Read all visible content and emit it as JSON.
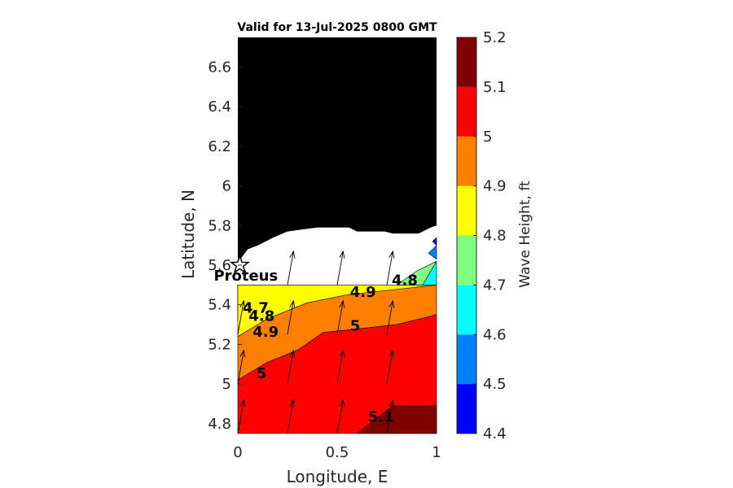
{
  "chart_data": {
    "type": "heatmap",
    "title": "Valid for 13-Jul-2025 0800 GMT",
    "xlabel": "Longitude, E",
    "ylabel": "Latitude, N",
    "xlim": [
      0,
      1
    ],
    "ylim": [
      4.75,
      6.75
    ],
    "x_ticks": [
      {
        "value": 0,
        "label": "0"
      },
      {
        "value": 0.5,
        "label": "0.5"
      },
      {
        "value": 1,
        "label": "1"
      }
    ],
    "y_ticks": [
      {
        "value": 4.8,
        "label": "4.8"
      },
      {
        "value": 5.0,
        "label": "5"
      },
      {
        "value": 5.2,
        "label": "5.2"
      },
      {
        "value": 5.4,
        "label": "5.4"
      },
      {
        "value": 5.6,
        "label": "5.6"
      },
      {
        "value": 5.8,
        "label": "5.8"
      },
      {
        "value": 6.0,
        "label": "6"
      },
      {
        "value": 6.2,
        "label": "6.2"
      },
      {
        "value": 6.4,
        "label": "6.4"
      },
      {
        "value": 6.6,
        "label": "6.6"
      }
    ],
    "colorbar": {
      "label": "Wave Height, ft",
      "levels": [
        4.4,
        4.5,
        4.6,
        4.7,
        4.8,
        4.9,
        5.0,
        5.1,
        5.2
      ],
      "level_labels": [
        "4.4",
        "4.5",
        "4.6",
        "4.7",
        "4.8",
        "4.9",
        "5",
        "5.1",
        "5.2"
      ],
      "colors": [
        "#0000ff",
        "#0080ff",
        "#00ffff",
        "#80ff80",
        "#ffff00",
        "#ff8000",
        "#ff0000",
        "#800000"
      ]
    },
    "bands": [
      {
        "level_index": 0,
        "points": [
          [
            0,
            5.5
          ],
          [
            0.1,
            5.5
          ],
          [
            0,
            5.4
          ]
        ]
      },
      {
        "level_index": 1,
        "points": [
          [
            0,
            5.5
          ],
          [
            0.17,
            5.5
          ],
          [
            0,
            5.36
          ]
        ]
      },
      {
        "level_index": 2,
        "points": [
          [
            0,
            5.5
          ],
          [
            0.24,
            5.5
          ],
          [
            0,
            5.33
          ]
        ]
      },
      {
        "level_index": 3,
        "points": [
          [
            0,
            5.5
          ],
          [
            0.4,
            5.5
          ],
          [
            0.1,
            5.4
          ],
          [
            0,
            5.32
          ]
        ]
      },
      {
        "level_index": 4,
        "points": [
          [
            0,
            5.5
          ],
          [
            1,
            5.5
          ],
          [
            0.55,
            5.45
          ],
          [
            0.35,
            5.41
          ],
          [
            0.15,
            5.33
          ],
          [
            0,
            5.24
          ]
        ]
      },
      {
        "level_index": 5,
        "points": [
          [
            0,
            5.24
          ],
          [
            0.15,
            5.33
          ],
          [
            0.35,
            5.41
          ],
          [
            0.55,
            5.45
          ],
          [
            1,
            5.5
          ],
          [
            1,
            5.35
          ],
          [
            0.8,
            5.3
          ],
          [
            0.62,
            5.28
          ],
          [
            0.43,
            5.26
          ],
          [
            0.3,
            5.17
          ],
          [
            0.15,
            5.11
          ],
          [
            0,
            5.02
          ]
        ]
      },
      {
        "level_index": 6,
        "points": [
          [
            0,
            5.02
          ],
          [
            0.15,
            5.11
          ],
          [
            0.3,
            5.17
          ],
          [
            0.43,
            5.26
          ],
          [
            0.62,
            5.28
          ],
          [
            0.8,
            5.3
          ],
          [
            1,
            5.35
          ],
          [
            1,
            4.75
          ],
          [
            0,
            4.75
          ]
        ]
      },
      {
        "level_index": 7,
        "points": [
          [
            0.6,
            4.75
          ],
          [
            0.78,
            4.89
          ],
          [
            1,
            4.89
          ],
          [
            1,
            4.75
          ]
        ]
      },
      {
        "level_index": 2,
        "points": [
          [
            1,
            5.5
          ],
          [
            0.93,
            5.5
          ],
          [
            1,
            5.62
          ]
        ]
      },
      {
        "level_index": 1,
        "points": [
          [
            1,
            5.63
          ],
          [
            1,
            5.7
          ],
          [
            0.96,
            5.66
          ]
        ]
      },
      {
        "level_index": 0,
        "points": [
          [
            1,
            5.7
          ],
          [
            1,
            5.74
          ],
          [
            0.98,
            5.72
          ]
        ]
      },
      {
        "level_index": 3,
        "points": [
          [
            0.8,
            5.5
          ],
          [
            0.93,
            5.5
          ],
          [
            1,
            5.62
          ],
          [
            0.9,
            5.57
          ]
        ]
      }
    ],
    "land": [
      [
        0,
        6.75
      ],
      [
        1,
        6.75
      ],
      [
        1,
        5.8
      ],
      [
        0.97,
        5.79
      ],
      [
        0.91,
        5.76
      ],
      [
        0.85,
        5.76
      ],
      [
        0.78,
        5.76
      ],
      [
        0.74,
        5.77
      ],
      [
        0.66,
        5.77
      ],
      [
        0.6,
        5.77
      ],
      [
        0.56,
        5.79
      ],
      [
        0.5,
        5.79
      ],
      [
        0.44,
        5.79
      ],
      [
        0.4,
        5.79
      ],
      [
        0.32,
        5.78
      ],
      [
        0.25,
        5.77
      ],
      [
        0.18,
        5.74
      ],
      [
        0.1,
        5.7
      ],
      [
        0.05,
        5.68
      ],
      [
        0.02,
        5.64
      ],
      [
        0,
        5.62
      ]
    ],
    "arrows": [
      {
        "x": 0,
        "y": 4.75,
        "dx": 0.03,
        "dy": 0.17
      },
      {
        "x": 0.25,
        "y": 4.75,
        "dx": 0.03,
        "dy": 0.17
      },
      {
        "x": 0.5,
        "y": 4.75,
        "dx": 0.03,
        "dy": 0.17
      },
      {
        "x": 0.75,
        "y": 4.75,
        "dx": 0.03,
        "dy": 0.17
      },
      {
        "x": 0,
        "y": 5.0,
        "dx": 0.03,
        "dy": 0.17
      },
      {
        "x": 0.25,
        "y": 5.0,
        "dx": 0.03,
        "dy": 0.17
      },
      {
        "x": 0.5,
        "y": 5.0,
        "dx": 0.03,
        "dy": 0.17
      },
      {
        "x": 0.75,
        "y": 5.0,
        "dx": 0.03,
        "dy": 0.17
      },
      {
        "x": 0,
        "y": 5.25,
        "dx": 0.03,
        "dy": 0.17
      },
      {
        "x": 0.25,
        "y": 5.25,
        "dx": 0.03,
        "dy": 0.17
      },
      {
        "x": 0.5,
        "y": 5.25,
        "dx": 0.03,
        "dy": 0.17
      },
      {
        "x": 0.75,
        "y": 5.25,
        "dx": 0.03,
        "dy": 0.17
      },
      {
        "x": 0.25,
        "y": 5.5,
        "dx": 0.03,
        "dy": 0.17
      },
      {
        "x": 0.5,
        "y": 5.5,
        "dx": 0.03,
        "dy": 0.17
      },
      {
        "x": 0.75,
        "y": 5.5,
        "dx": 0.03,
        "dy": 0.17
      }
    ],
    "contour_labels": [
      {
        "x": 0.84,
        "y": 5.52,
        "text": "4.8"
      },
      {
        "x": 0.63,
        "y": 5.46,
        "text": "4.9"
      },
      {
        "x": 0.09,
        "y": 5.38,
        "text": "4.7"
      },
      {
        "x": 0.12,
        "y": 5.34,
        "text": "4.8"
      },
      {
        "x": 0.14,
        "y": 5.26,
        "text": "4.9"
      },
      {
        "x": 0.59,
        "y": 5.29,
        "text": "5"
      },
      {
        "x": 0.12,
        "y": 5.05,
        "text": "5"
      },
      {
        "x": 0.72,
        "y": 4.83,
        "text": "5.1"
      }
    ],
    "site": {
      "name": "Proteus",
      "x": 0.01,
      "y": 5.6
    }
  }
}
